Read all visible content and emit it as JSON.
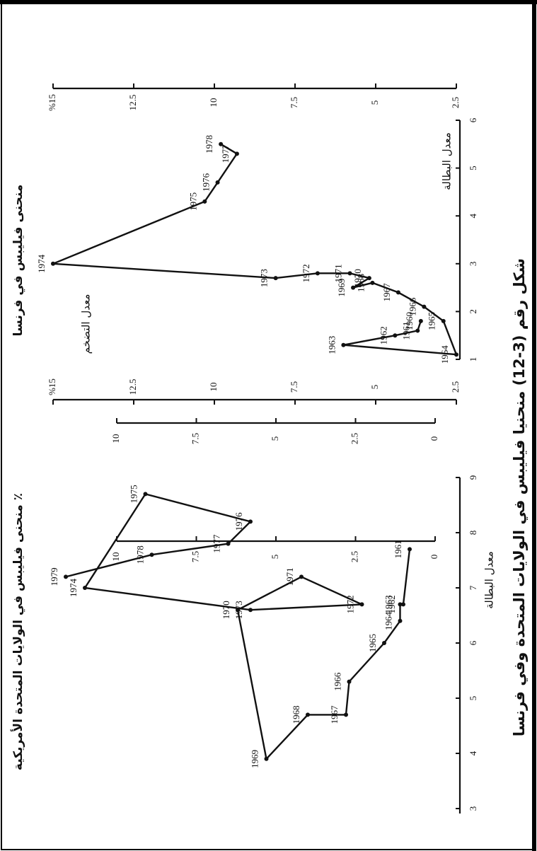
{
  "caption": "شكل رقم (3-12) منحنيا فيليبس في الولايات المتحدة وفي فرنسا",
  "chart_data": [
    {
      "type": "line",
      "title": "منحنى فيليبس في الولايات المتحدة الأمريكية ٪",
      "x_label": "معدل البطالة",
      "point_labels": [
        "1961",
        "1962",
        "1963",
        "1964",
        "1965",
        "1966",
        "1967",
        "1968",
        "1969",
        "1970",
        "1971",
        "1972",
        "1973",
        "1974",
        "1975",
        "1976",
        "1977",
        "1978",
        "1979"
      ],
      "x": [
        7.7,
        6.7,
        6.7,
        6.4,
        6.0,
        5.3,
        4.7,
        4.7,
        3.9,
        6.6,
        7.2,
        6.7,
        6.6,
        7.0,
        8.7,
        8.2,
        7.8,
        7.6,
        7.2
      ],
      "values": [
        0.8,
        1.0,
        1.1,
        1.1,
        1.6,
        2.7,
        2.8,
        4.0,
        5.3,
        6.2,
        4.2,
        2.3,
        5.8,
        11.0,
        9.1,
        5.8,
        6.5,
        8.9,
        11.6
      ],
      "color": "#111111",
      "xlim": [
        3,
        9
      ],
      "xticks": [
        3,
        4,
        5,
        6,
        7,
        8,
        9
      ],
      "ylim": [
        0,
        10
      ],
      "yticks": [
        0,
        2.5,
        5,
        7.5,
        10
      ]
    },
    {
      "type": "line",
      "title": "منحنى فيليبس في فرنسا",
      "x_label": "معدل البطالة",
      "y_label": "معدل التضخم",
      "point_labels": [
        "1960",
        "1961",
        "1962",
        "1963",
        "1964",
        "1965",
        "1966",
        "1967",
        "1968",
        "1969",
        "1970",
        "1971",
        "1972",
        "1973",
        "1974",
        "1975",
        "1976",
        "1977",
        "1978"
      ],
      "x": [
        1.8,
        1.6,
        1.5,
        1.3,
        1.1,
        1.8,
        2.1,
        2.4,
        2.6,
        2.5,
        2.7,
        2.8,
        2.8,
        2.7,
        3.0,
        4.3,
        4.7,
        5.3,
        5.5
      ],
      "values": [
        3.6,
        3.7,
        4.4,
        6.0,
        2.5,
        2.9,
        3.5,
        4.3,
        5.1,
        5.7,
        5.2,
        5.8,
        6.8,
        8.1,
        15.0,
        10.3,
        9.9,
        9.3,
        9.8
      ],
      "color": "#111111",
      "xlim": [
        1,
        6
      ],
      "xticks": [
        1,
        2,
        3,
        4,
        5,
        6
      ],
      "ylim": [
        2.5,
        15
      ],
      "yticks": [
        2.5,
        5,
        7.5,
        10,
        12.5,
        {
          "value": 15,
          "label": "%15"
        }
      ]
    }
  ]
}
